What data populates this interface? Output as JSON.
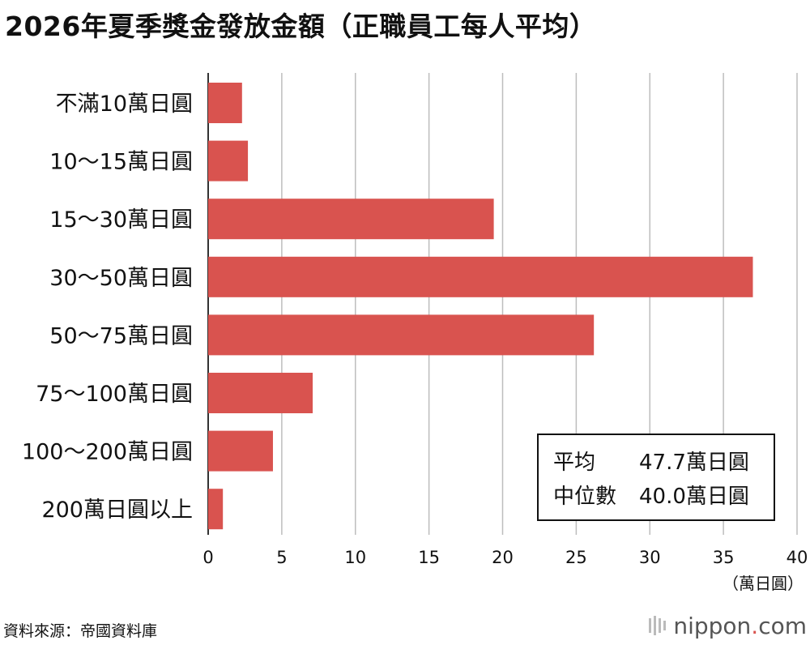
{
  "title": "2026年夏季獎金發放金額（正職員工每人平均）",
  "chart_data": {
    "type": "bar",
    "orientation": "horizontal",
    "categories": [
      "不滿10萬日圓",
      "10〜15萬日圓",
      "15〜30萬日圓",
      "30〜50萬日圓",
      "50〜75萬日圓",
      "75〜100萬日圓",
      "100〜200萬日圓",
      "200萬日圓以上"
    ],
    "values": [
      2.3,
      2.7,
      19.4,
      37.0,
      26.2,
      7.1,
      4.4,
      1.0
    ],
    "xlim": [
      0,
      40
    ],
    "xticks": [
      "0",
      "5",
      "10",
      "15",
      "20",
      "25",
      "30",
      "35",
      "40"
    ],
    "xlabel": "（萬日圓）",
    "grid": true,
    "bar_color": "#d9534f"
  },
  "stats": [
    {
      "label": "平均",
      "value": "47.7萬日圓"
    },
    {
      "label": "中位數",
      "value": "40.0萬日圓"
    }
  ],
  "source": "資料來源：帝國資料庫",
  "logo": {
    "name": "nippon",
    "dot": ".",
    "tld": "com"
  }
}
